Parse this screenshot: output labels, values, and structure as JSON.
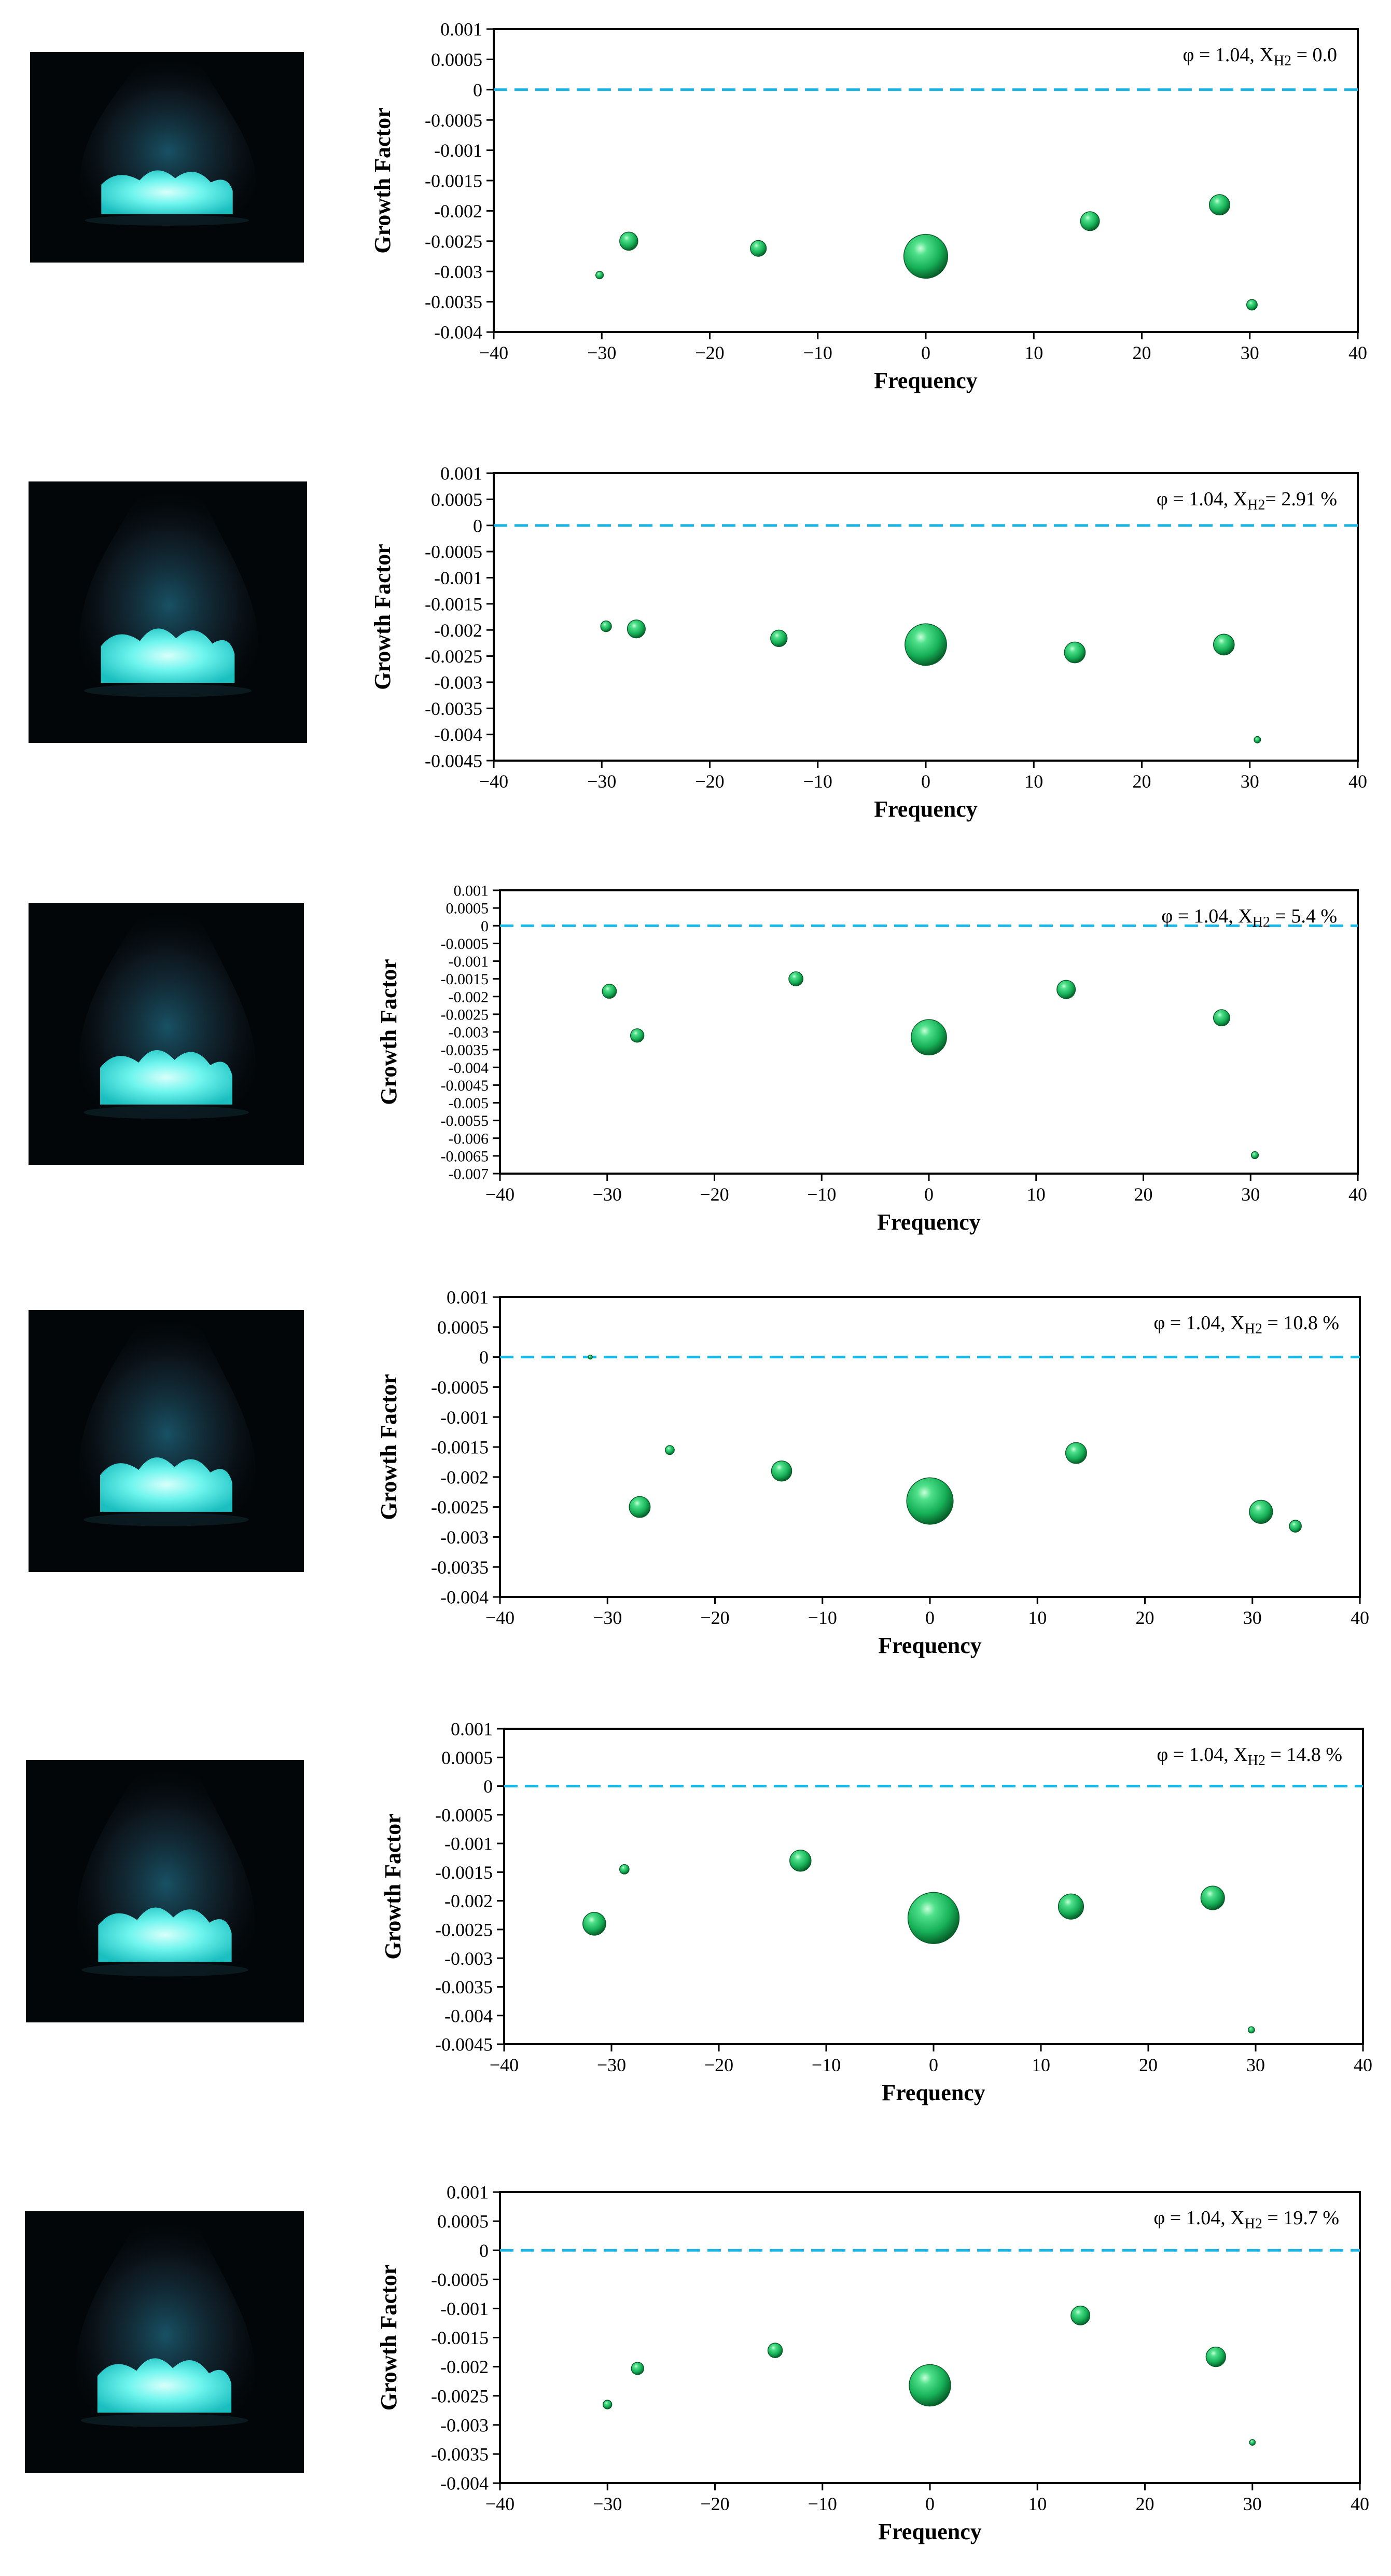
{
  "figure": {
    "photo_descriptions": [
      "flame-photo-1",
      "flame-photo-2",
      "flame-photo-3",
      "flame-photo-4",
      "flame-photo-5",
      "flame-photo-6"
    ]
  },
  "colors": {
    "bubble_light": "#4fe08a",
    "bubble_mid": "#16b057",
    "bubble_dark": "#075c28",
    "zero_line": "#1ab7e6",
    "flame_core": "#6ff5ee",
    "flame_glow": "#2a8fb0",
    "photo_bg": "#020608"
  },
  "chart_data": [
    {
      "type": "scatter",
      "title": "φ = 1.04, XH2 = 0.0",
      "title_parts": {
        "phi": "φ = 1.04, X",
        "sub": "H2",
        "rest": " = 0.0"
      },
      "xlabel": "Frequency",
      "ylabel": "Growth Factor",
      "xlim": [
        -40,
        40
      ],
      "ylim": [
        -0.004,
        0.001
      ],
      "xticks": [
        "-40",
        "-30",
        "-20",
        "-10",
        "0",
        "10",
        "20",
        "30",
        "40"
      ],
      "xtick_values": [
        -40,
        -30,
        -20,
        -10,
        0,
        10,
        20,
        30,
        40
      ],
      "yticks": [
        "0.001",
        "0.0005",
        "0",
        "-0.0005",
        "-0.001",
        "-0.0015",
        "-0.002",
        "-0.0025",
        "-0.003",
        "-0.0035",
        "-0.004"
      ],
      "ytick_values": [
        0.001,
        0.0005,
        0,
        -0.0005,
        -0.001,
        -0.0015,
        -0.002,
        -0.0025,
        -0.003,
        -0.0035,
        -0.004
      ],
      "zero_line": 0,
      "points": [
        {
          "x": -30.2,
          "y": -0.00306,
          "size": 1.0
        },
        {
          "x": -27.5,
          "y": -0.0025,
          "size": 2.4
        },
        {
          "x": -15.5,
          "y": -0.00262,
          "size": 2.1
        },
        {
          "x": 0.0,
          "y": -0.00275,
          "size": 5.8
        },
        {
          "x": 15.2,
          "y": -0.00217,
          "size": 2.5
        },
        {
          "x": 27.2,
          "y": -0.0019,
          "size": 2.7
        },
        {
          "x": 30.2,
          "y": -0.00355,
          "size": 1.4
        }
      ]
    },
    {
      "type": "scatter",
      "title": "φ = 1.04, XH2= 2.91 %",
      "title_parts": {
        "phi": "φ = 1.04, X",
        "sub": "H2",
        "rest": "= 2.91 %"
      },
      "xlabel": "Frequency",
      "ylabel": "Growth Factor",
      "xlim": [
        -40,
        40
      ],
      "ylim": [
        -0.0045,
        0.001
      ],
      "xticks": [
        "-40",
        "-30",
        "-20",
        "-10",
        "0",
        "10",
        "20",
        "30",
        "40"
      ],
      "xtick_values": [
        -40,
        -30,
        -20,
        -10,
        0,
        10,
        20,
        30,
        40
      ],
      "yticks": [
        "0.001",
        "0.0005",
        "0",
        "-0.0005",
        "-0.001",
        "-0.0015",
        "-0.002",
        "-0.0025",
        "-0.003",
        "-0.0035",
        "-0.004",
        "-0.0045"
      ],
      "ytick_values": [
        0.001,
        0.0005,
        0,
        -0.0005,
        -0.001,
        -0.0015,
        -0.002,
        -0.0025,
        -0.003,
        -0.0035,
        -0.004,
        -0.0045
      ],
      "zero_line": 0,
      "points": [
        {
          "x": -29.6,
          "y": -0.00193,
          "size": 1.5
        },
        {
          "x": -26.8,
          "y": -0.00198,
          "size": 2.5
        },
        {
          "x": -13.6,
          "y": -0.00216,
          "size": 2.3
        },
        {
          "x": 0.0,
          "y": -0.00228,
          "size": 5.8
        },
        {
          "x": 13.8,
          "y": -0.00243,
          "size": 2.9
        },
        {
          "x": 27.6,
          "y": -0.00228,
          "size": 2.9
        },
        {
          "x": 30.7,
          "y": -0.0041,
          "size": 0.9
        }
      ]
    },
    {
      "type": "scatter",
      "title": "φ = 1.04, XH2 = 5.4 %",
      "title_parts": {
        "phi": "φ = 1.04, X",
        "sub": "H2",
        "rest": " = 5.4 %"
      },
      "xlabel": "Frequency",
      "ylabel": "Growth Factor",
      "xlim": [
        -40,
        40
      ],
      "ylim": [
        -0.007,
        0.001
      ],
      "xticks": [
        "-40",
        "-30",
        "-20",
        "-10",
        "0",
        "10",
        "20",
        "30",
        "40"
      ],
      "xtick_values": [
        -40,
        -30,
        -20,
        -10,
        0,
        10,
        20,
        30,
        40
      ],
      "yticks": [
        "0.001",
        "0.0005",
        "0",
        "-0.0005",
        "-0.001",
        "-0.0015",
        "-0.002",
        "-0.0025",
        "-0.003",
        "-0.0035",
        "-0.004",
        "-0.0045",
        "-0.005",
        "-0.0055",
        "-0.006",
        "-0.0065",
        "-0.007"
      ],
      "ytick_values": [
        0.001,
        0.0005,
        0,
        -0.0005,
        -0.001,
        -0.0015,
        -0.002,
        -0.0025,
        -0.003,
        -0.0035,
        -0.004,
        -0.0045,
        -0.005,
        -0.0055,
        -0.006,
        -0.0065,
        -0.007
      ],
      "zero_line": 0,
      "points": [
        {
          "x": -29.8,
          "y": -0.00185,
          "size": 2.0
        },
        {
          "x": -27.2,
          "y": -0.0031,
          "size": 1.9
        },
        {
          "x": -12.4,
          "y": -0.0015,
          "size": 2.0
        },
        {
          "x": 0.0,
          "y": -0.00315,
          "size": 5.0
        },
        {
          "x": 12.8,
          "y": -0.0018,
          "size": 2.6
        },
        {
          "x": 27.3,
          "y": -0.0026,
          "size": 2.3
        },
        {
          "x": 30.4,
          "y": -0.00648,
          "size": 1.0
        }
      ]
    },
    {
      "type": "scatter",
      "title": "φ = 1.04, XH2 = 10.8 %",
      "title_parts": {
        "phi": "φ = 1.04, X",
        "sub": "H2",
        "rest": " = 10.8 %"
      },
      "xlabel": "Frequency",
      "ylabel": "Growth Factor",
      "xlim": [
        -40,
        40
      ],
      "ylim": [
        -0.004,
        0.001
      ],
      "xticks": [
        "-40",
        "-30",
        "-20",
        "-10",
        "0",
        "10",
        "20",
        "30",
        "40"
      ],
      "xtick_values": [
        -40,
        -30,
        -20,
        -10,
        0,
        10,
        20,
        30,
        40
      ],
      "yticks": [
        "0.001",
        "0.0005",
        "0",
        "-0.0005",
        "-0.001",
        "-0.0015",
        "-0.002",
        "-0.0025",
        "-0.003",
        "-0.0035",
        "-0.004"
      ],
      "ytick_values": [
        0.001,
        0.0005,
        0,
        -0.0005,
        -0.001,
        -0.0015,
        -0.002,
        -0.0025,
        -0.003,
        -0.0035,
        -0.004
      ],
      "zero_line": 0,
      "points": [
        {
          "x": -31.6,
          "y": 0.0,
          "size": 0.5
        },
        {
          "x": -24.2,
          "y": -0.00155,
          "size": 1.2
        },
        {
          "x": -27.0,
          "y": -0.0025,
          "size": 2.8
        },
        {
          "x": -13.8,
          "y": -0.0019,
          "size": 2.7
        },
        {
          "x": 0.0,
          "y": -0.0024,
          "size": 6.2
        },
        {
          "x": 13.6,
          "y": -0.0016,
          "size": 2.8
        },
        {
          "x": 30.8,
          "y": -0.00258,
          "size": 3.1
        },
        {
          "x": 34.0,
          "y": -0.00282,
          "size": 1.6
        }
      ]
    },
    {
      "type": "scatter",
      "title": "φ = 1.04, XH2 = 14.8 %",
      "title_parts": {
        "phi": "φ = 1.04, X",
        "sub": "H2",
        "rest": " = 14.8 %"
      },
      "xlabel": "Frequency",
      "ylabel": "Growth Factor",
      "xlim": [
        -40,
        40
      ],
      "ylim": [
        -0.0045,
        0.001
      ],
      "xticks": [
        "-40",
        "-30",
        "-20",
        "-10",
        "0",
        "10",
        "20",
        "30",
        "40"
      ],
      "xtick_values": [
        -40,
        -30,
        -20,
        -10,
        0,
        10,
        20,
        30,
        40
      ],
      "yticks": [
        "0.001",
        "0.0005",
        "0",
        "-0.0005",
        "-0.001",
        "-0.0015",
        "-0.002",
        "-0.0025",
        "-0.003",
        "-0.0035",
        "-0.004",
        "-0.0045"
      ],
      "ytick_values": [
        0.001,
        0.0005,
        0,
        -0.0005,
        -0.001,
        -0.0015,
        -0.002,
        -0.0025,
        -0.003,
        -0.0035,
        -0.004,
        -0.0045
      ],
      "zero_line": 0,
      "points": [
        {
          "x": -31.6,
          "y": -0.0024,
          "size": 2.9
        },
        {
          "x": -28.8,
          "y": -0.00145,
          "size": 1.2
        },
        {
          "x": -12.4,
          "y": -0.0013,
          "size": 2.7
        },
        {
          "x": 0.0,
          "y": -0.0023,
          "size": 6.5
        },
        {
          "x": 12.8,
          "y": -0.0021,
          "size": 3.2
        },
        {
          "x": 26.0,
          "y": -0.00195,
          "size": 3.0
        },
        {
          "x": 29.6,
          "y": -0.00425,
          "size": 0.8
        }
      ]
    },
    {
      "type": "scatter",
      "title": "φ = 1.04, XH2 = 19.7 %",
      "title_parts": {
        "phi": "φ = 1.04, X",
        "sub": "H2",
        "rest": " = 19.7 %"
      },
      "xlabel": "Frequency",
      "ylabel": "Growth Factor",
      "xlim": [
        -40,
        40
      ],
      "ylim": [
        -0.004,
        0.001
      ],
      "xticks": [
        "-40",
        "-30",
        "-20",
        "-10",
        "0",
        "10",
        "20",
        "30",
        "40"
      ],
      "xtick_values": [
        -40,
        -30,
        -20,
        -10,
        0,
        10,
        20,
        30,
        40
      ],
      "yticks": [
        "0.001",
        "0.0005",
        "0",
        "-0.0005",
        "-0.001",
        "-0.0015",
        "-0.002",
        "-0.0025",
        "-0.003",
        "-0.0035",
        "-0.004"
      ],
      "ytick_values": [
        0.001,
        0.0005,
        0,
        -0.0005,
        -0.001,
        -0.0015,
        -0.002,
        -0.0025,
        -0.003,
        -0.0035,
        -0.004
      ],
      "zero_line": 0,
      "points": [
        {
          "x": -30.0,
          "y": -0.00265,
          "size": 1.2
        },
        {
          "x": -27.2,
          "y": -0.00203,
          "size": 1.7
        },
        {
          "x": -14.4,
          "y": -0.00172,
          "size": 2.0
        },
        {
          "x": 0.0,
          "y": -0.00232,
          "size": 5.7
        },
        {
          "x": 14.0,
          "y": -0.00112,
          "size": 2.6
        },
        {
          "x": 26.6,
          "y": -0.00183,
          "size": 2.7
        },
        {
          "x": 30.0,
          "y": -0.0033,
          "size": 0.8
        }
      ]
    }
  ]
}
